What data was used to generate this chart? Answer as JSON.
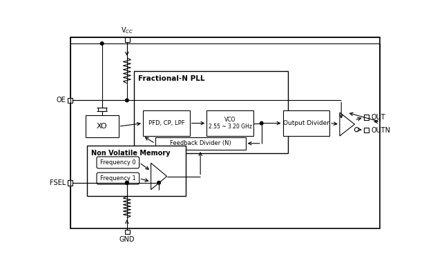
{
  "bg_color": "#ffffff",
  "line_color": "#000000",
  "vcc_label": "V$_{CC}$",
  "gnd_label": "GND",
  "oe_label": "OE",
  "fsel_label": "FSEL",
  "out_label": "OUT",
  "outn_label": "OUTN",
  "pll_label": "Fractional-N PLL",
  "xo_label": "XO",
  "pfd_label": "PFD, CP, LPF",
  "vco_label": "VCO\n2.55 ~ 3.20 GHz",
  "feedback_label": "Feedback Divider (N)",
  "output_div_label": "Output Divider",
  "nvm_label": "Non Volatile Memory",
  "freq0_label": "Frequency 0",
  "freq1_label": "Frequency 1"
}
